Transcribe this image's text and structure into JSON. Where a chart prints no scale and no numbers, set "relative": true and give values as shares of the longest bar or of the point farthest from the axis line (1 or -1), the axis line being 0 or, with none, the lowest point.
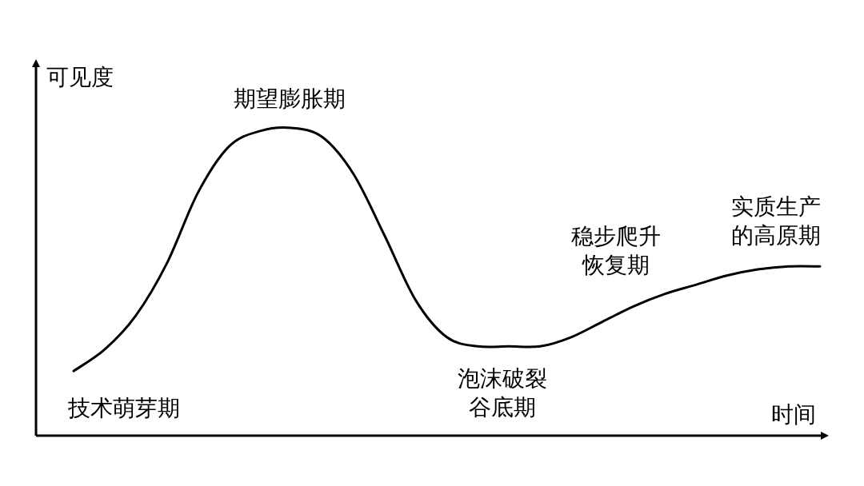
{
  "chart_data": {
    "type": "line",
    "relative": true,
    "xlabel": "时间",
    "ylabel": "可见度",
    "categories": [
      null,
      null,
      null,
      null,
      null,
      null,
      null,
      null,
      null,
      null,
      null,
      null,
      null,
      null,
      null,
      null,
      null,
      null,
      null,
      null,
      null,
      null,
      null,
      null,
      null
    ],
    "series": [
      {
        "color": "#000000",
        "values": [
          0.21,
          0.28,
          0.39,
          0.56,
          0.79,
          0.94,
          0.99,
          1.0,
          0.97,
          0.85,
          0.65,
          0.44,
          0.32,
          0.29,
          0.29,
          0.29,
          0.32,
          0.37,
          0.42,
          0.46,
          0.49,
          0.52,
          0.54,
          0.55,
          0.55
        ]
      }
    ],
    "annotations": [
      "期望膨胀期",
      "技术萌芽期",
      "泡沫破裂谷底期",
      "稳步爬升恢复期",
      "实质生产的高原期"
    ]
  }
}
